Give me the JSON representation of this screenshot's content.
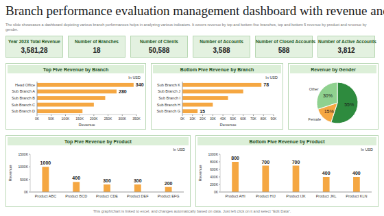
{
  "header": {
    "title": "Branch performance evaluation management dashboard with revenue and product",
    "subtitle": "The slide showcases a dashboard depicting various branch performances helps in analyzing various indicators. It covers revenue by top and bottom five branches, top and bottom 5 revenue by product and revenue by gender."
  },
  "kpis": [
    {
      "label": "Year 2023 Total Revenue",
      "value": "3,581,28"
    },
    {
      "label": "Number of Branches",
      "value": "18"
    },
    {
      "label": "Number of Clients",
      "value": "50,588"
    },
    {
      "label": "Number of Accounts",
      "value": "3,588"
    },
    {
      "label": "Number of Closed Accounts",
      "value": "588"
    },
    {
      "label": "Number of Active Accounts",
      "value": "3,812"
    }
  ],
  "footer": "This graph/chart is linked to excel, and changes automatically based on data. Just left click on it and select \"Edit Data\".",
  "chart_data": [
    {
      "type": "bar",
      "orientation": "horizontal",
      "title": "Top Five Revenue by Branch",
      "subtitle": "In USD",
      "categories": [
        "Head Office",
        "Sub Branch A",
        "Sub Branch B",
        "Sub Branch C",
        "Sub Branch D"
      ],
      "values": [
        340,
        280,
        240,
        200,
        160
      ],
      "value_labels": [
        "340",
        "280",
        null,
        null,
        null
      ],
      "data_labels": true,
      "color": "#f5a742",
      "grid": false,
      "xlabel": "Revenue",
      "xlim": [
        0,
        350
      ],
      "xticks": [
        {
          "value": 0,
          "label": "0K"
        },
        {
          "value": 50,
          "label": "50K"
        },
        {
          "value": 100,
          "label": "100K"
        },
        {
          "value": 150,
          "label": "150K"
        },
        {
          "value": 200,
          "label": "200K"
        },
        {
          "value": 250,
          "label": "250K"
        },
        {
          "value": 300,
          "label": "300K"
        },
        {
          "value": 350,
          "label": "350K"
        }
      ]
    },
    {
      "type": "bar",
      "orientation": "horizontal",
      "title": "Bottom Five Revenue by Branch",
      "subtitle": "In USD",
      "categories": [
        "Sub Branch K",
        "Sub Branch J",
        "Sub Branch I",
        "Sub Branch H",
        "Sub Branch G"
      ],
      "values": [
        78,
        60,
        45,
        30,
        15
      ],
      "value_labels": [
        "78",
        null,
        null,
        null,
        "15"
      ],
      "data_labels": true,
      "color": "#f5a742",
      "grid": false,
      "xlabel": "Revenue",
      "xlim": [
        0,
        90
      ],
      "xticks": [
        {
          "value": 0,
          "label": "0K"
        },
        {
          "value": 10,
          "label": "10K"
        },
        {
          "value": 20,
          "label": "20K"
        },
        {
          "value": 30,
          "label": "30K"
        },
        {
          "value": 40,
          "label": "40K"
        },
        {
          "value": 50,
          "label": "50K"
        },
        {
          "value": 60,
          "label": "60K"
        },
        {
          "value": 70,
          "label": "70K"
        },
        {
          "value": 80,
          "label": "80K"
        },
        {
          "value": 90,
          "label": "90K"
        }
      ]
    },
    {
      "type": "pie",
      "title": "Revenue by Gender",
      "categories": [
        null,
        "Female",
        "Other"
      ],
      "values": [
        55,
        15,
        30
      ],
      "value_labels": [
        "55%",
        "15%",
        "30%"
      ],
      "data_labels": true,
      "colors": [
        "#2e8b3e",
        "#f5a742",
        "#8fd18f"
      ]
    },
    {
      "type": "bar",
      "title": "Top Five Revenue by Product",
      "subtitle": "In USD",
      "categories": [
        "Product ABC",
        "Product BCD",
        "Product CDE",
        "Product DEF",
        "Product EFG"
      ],
      "values": [
        1000,
        400,
        300,
        300,
        200
      ],
      "data_labels": true,
      "color": "#f5a742",
      "grid": false,
      "ylabel": "Revenue",
      "ylim": [
        0,
        1500
      ],
      "yticks": [
        {
          "value": 0,
          "label": "0K"
        },
        {
          "value": 500,
          "label": "500K"
        },
        {
          "value": 1000,
          "label": "1000K"
        },
        {
          "value": 1500,
          "label": "1500K"
        }
      ]
    },
    {
      "type": "bar",
      "title": "Bottom Five Revenue by Product",
      "subtitle": "In USD",
      "categories": [
        "Product AHI",
        "Product HIJ",
        "Product IJK",
        "Product JKL",
        "Product KLN"
      ],
      "values": [
        800,
        700,
        700,
        400,
        400
      ],
      "data_labels": true,
      "color": "#f5a742",
      "grid": false,
      "ylabel": "Revenue",
      "ylim": [
        0,
        1000
      ],
      "yticks": [
        {
          "value": 0,
          "label": "0K"
        },
        {
          "value": 200,
          "label": "200K"
        },
        {
          "value": 400,
          "label": "400K"
        },
        {
          "value": 600,
          "label": "600K"
        },
        {
          "value": 800,
          "label": "800K"
        },
        {
          "value": 1000,
          "label": "1000K"
        }
      ]
    }
  ]
}
